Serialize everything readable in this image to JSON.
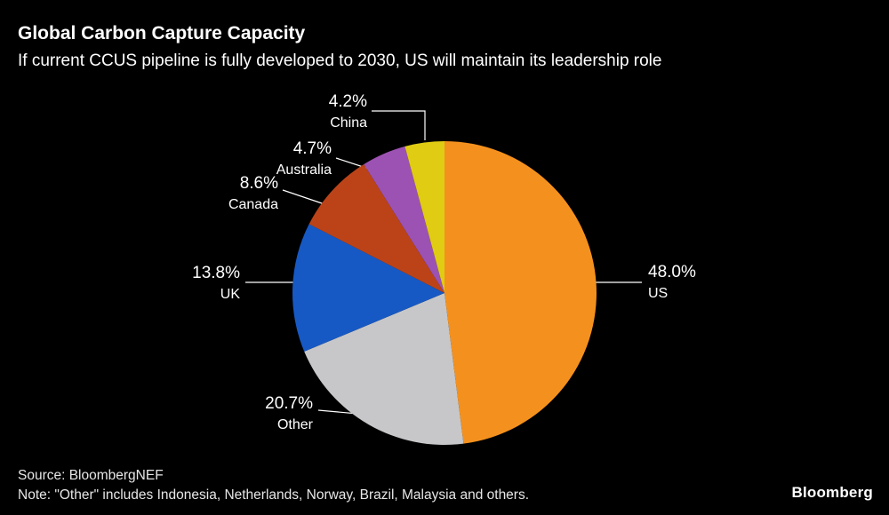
{
  "header": {
    "title": "Global Carbon Capture Capacity",
    "subtitle": "If current CCUS pipeline is fully developed to 2030, US will maintain its leadership role"
  },
  "footer": {
    "source": "Source: BloombergNEF",
    "note": "Note: \"Other\" includes Indonesia, Netherlands, Norway, Brazil, Malaysia and others.",
    "brand": "Bloomberg"
  },
  "chart_data": {
    "type": "pie",
    "title": "Global Carbon Capture Capacity",
    "subtitle": "If current CCUS pipeline is fully developed to 2030, US will maintain its leadership role",
    "start_angle_deg": 0,
    "direction": "clockwise",
    "legend_position": "callout-labels",
    "slices": [
      {
        "label": "US",
        "value": 48.0,
        "pct_label": "48.0%",
        "color": "#F4911E"
      },
      {
        "label": "Other",
        "value": 20.7,
        "pct_label": "20.7%",
        "color": "#C7C7C9"
      },
      {
        "label": "UK",
        "value": 13.8,
        "pct_label": "13.8%",
        "color": "#1759C4"
      },
      {
        "label": "Canada",
        "value": 8.6,
        "pct_label": "8.6%",
        "color": "#BC4318"
      },
      {
        "label": "Australia",
        "value": 4.7,
        "pct_label": "4.7%",
        "color": "#9C52B3"
      },
      {
        "label": "China",
        "value": 4.2,
        "pct_label": "4.2%",
        "color": "#E0CC12"
      }
    ]
  }
}
